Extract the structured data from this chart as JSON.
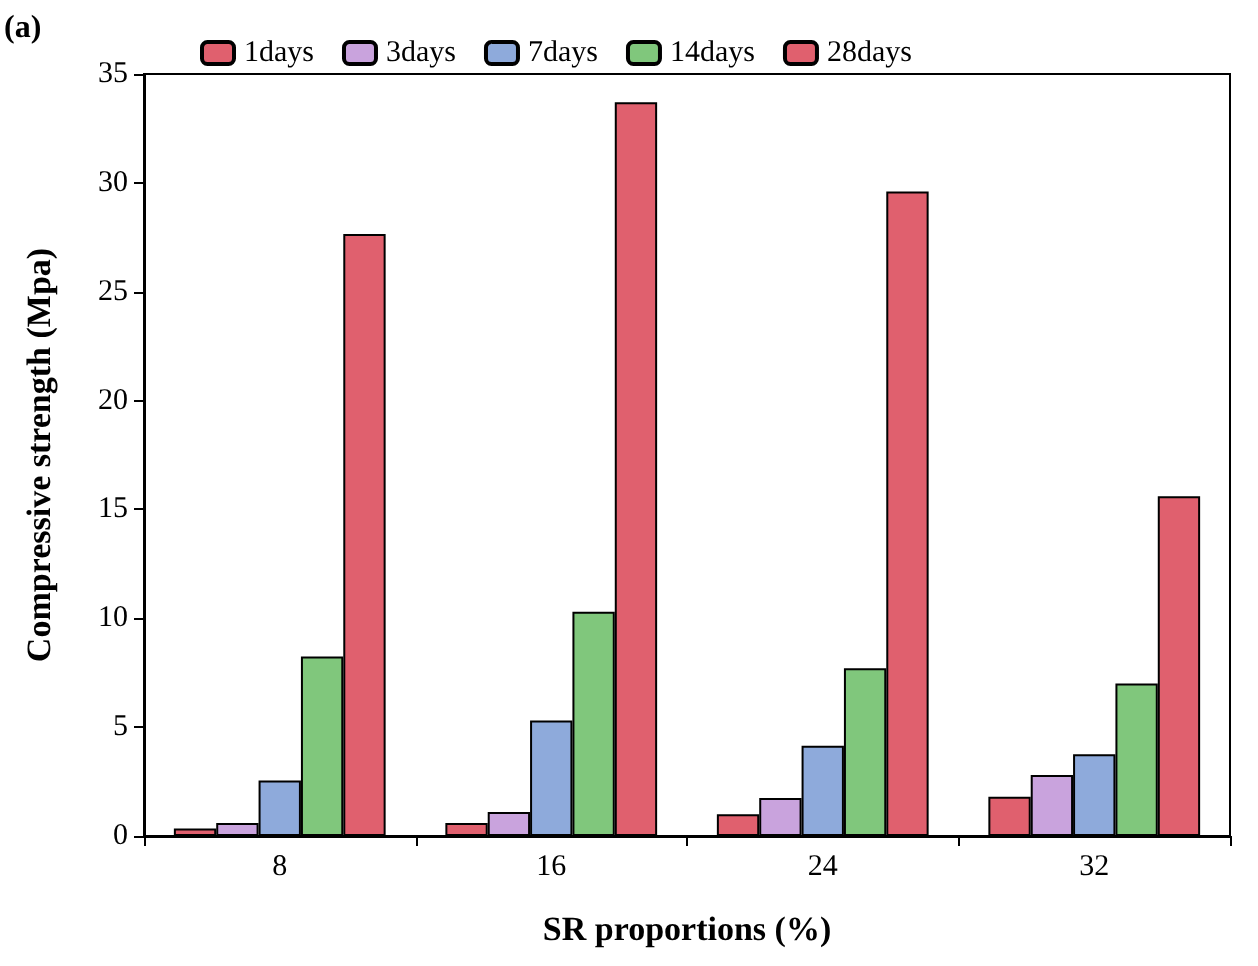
{
  "chart_data": {
    "type": "bar",
    "xlabel": "SR proportions (%)",
    "ylabel": "Compressive strength (Mpa)",
    "annotations": [
      "(a)"
    ],
    "categories": [
      "8",
      "16",
      "24",
      "32"
    ],
    "series": [
      {
        "name": "1days",
        "color": "#e0606e",
        "values": [
          0.35,
          0.6,
          1.0,
          1.8
        ]
      },
      {
        "name": "3days",
        "color": "#c9a3dd",
        "values": [
          0.6,
          1.1,
          1.75,
          2.8
        ]
      },
      {
        "name": "7days",
        "color": "#8eaadb",
        "values": [
          2.55,
          5.3,
          4.15,
          3.75
        ]
      },
      {
        "name": "14days",
        "color": "#80c77c",
        "values": [
          8.25,
          10.3,
          7.7,
          7.0
        ]
      },
      {
        "name": "28days",
        "color": "#e0606e",
        "values": [
          27.65,
          33.7,
          29.6,
          15.6
        ]
      }
    ],
    "ylim": [
      0,
      35
    ],
    "yticks": [
      0,
      5,
      10,
      15,
      20,
      25,
      30,
      35
    ],
    "grid": false,
    "legend": "top"
  }
}
